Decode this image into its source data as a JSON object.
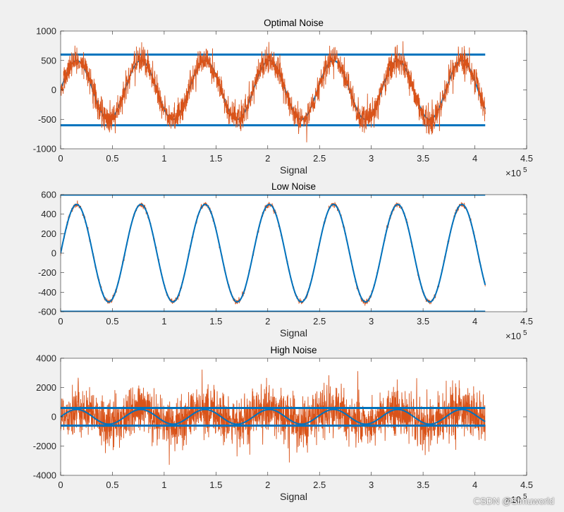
{
  "chart_data": [
    {
      "type": "line",
      "title": "Optimal Noise",
      "xlabel": "Signal",
      "ylabel": "",
      "x_exponent_label": "×10",
      "x_exponent": "5",
      "xlim": [
        0,
        4.5
      ],
      "ylim": [
        -1000,
        1000
      ],
      "xticks": [
        0,
        0.5,
        1,
        1.5,
        2,
        2.5,
        3,
        3.5,
        4,
        4.5
      ],
      "yticks": [
        -1000,
        -500,
        0,
        500,
        1000
      ],
      "xtick_labels": [
        "0",
        "0.5",
        "1",
        "1.5",
        "2",
        "2.5",
        "3",
        "3.5",
        "4",
        "4.5"
      ],
      "ytick_labels": [
        "-1000",
        "-500",
        "0",
        "500",
        "1000"
      ],
      "series": [
        {
          "name": "threshold-upper",
          "kind": "hline",
          "value": 600,
          "x_range": [
            0,
            4.1
          ],
          "color": "#0072BD"
        },
        {
          "name": "threshold-lower",
          "kind": "hline",
          "value": -600,
          "x_range": [
            0,
            4.1
          ],
          "color": "#0072BD"
        },
        {
          "name": "signal",
          "kind": "sine",
          "amplitude": 500,
          "period": 0.62,
          "x_range": [
            0,
            4.1
          ],
          "color": "#0072BD"
        },
        {
          "name": "noisy-signal",
          "kind": "noisy",
          "amplitude": 500,
          "period": 0.62,
          "noise_std": 120,
          "x_range": [
            0,
            4.1
          ],
          "color": "#D95319"
        }
      ]
    },
    {
      "type": "line",
      "title": "Low Noise",
      "xlabel": "Signal",
      "ylabel": "",
      "x_exponent_label": "×10",
      "x_exponent": "5",
      "xlim": [
        0,
        4.5
      ],
      "ylim": [
        -600,
        600
      ],
      "xticks": [
        0,
        0.5,
        1,
        1.5,
        2,
        2.5,
        3,
        3.5,
        4,
        4.5
      ],
      "yticks": [
        -600,
        -400,
        -200,
        0,
        200,
        400,
        600
      ],
      "xtick_labels": [
        "0",
        "0.5",
        "1",
        "1.5",
        "2",
        "2.5",
        "3",
        "3.5",
        "4",
        "4.5"
      ],
      "ytick_labels": [
        "-600",
        "-400",
        "-200",
        "0",
        "200",
        "400",
        "600"
      ],
      "series": [
        {
          "name": "threshold-upper",
          "kind": "hline",
          "value": 600,
          "x_range": [
            0,
            4.1
          ],
          "color": "#0072BD"
        },
        {
          "name": "threshold-lower",
          "kind": "hline",
          "value": -600,
          "x_range": [
            0,
            4.1
          ],
          "color": "#0072BD"
        },
        {
          "name": "noisy-signal",
          "kind": "noisy",
          "amplitude": 500,
          "period": 0.62,
          "noise_std": 14,
          "x_range": [
            0,
            4.1
          ],
          "color": "#D95319"
        },
        {
          "name": "signal",
          "kind": "sine",
          "amplitude": 500,
          "period": 0.62,
          "x_range": [
            0,
            4.1
          ],
          "color": "#0072BD"
        }
      ]
    },
    {
      "type": "line",
      "title": "High Noise",
      "xlabel": "Signal",
      "ylabel": "",
      "x_exponent_label": "×10",
      "x_exponent": "5",
      "xlim": [
        0,
        4.5
      ],
      "ylim": [
        -4000,
        4000
      ],
      "xticks": [
        0,
        0.5,
        1,
        1.5,
        2,
        2.5,
        3,
        3.5,
        4,
        4.5
      ],
      "yticks": [
        -4000,
        -2000,
        0,
        2000,
        4000
      ],
      "xtick_labels": [
        "0",
        "0.5",
        "1",
        "1.5",
        "2",
        "2.5",
        "3",
        "3.5",
        "4",
        "4.5"
      ],
      "ytick_labels": [
        "-4000",
        "-2000",
        "0",
        "2000",
        "4000"
      ],
      "series": [
        {
          "name": "noisy-signal",
          "kind": "noisy",
          "amplitude": 500,
          "period": 0.62,
          "noise_std": 850,
          "x_range": [
            0,
            4.1
          ],
          "color": "#D95319"
        },
        {
          "name": "threshold-upper",
          "kind": "hline",
          "value": 600,
          "x_range": [
            0,
            4.1
          ],
          "color": "#0072BD"
        },
        {
          "name": "threshold-lower",
          "kind": "hline",
          "value": -600,
          "x_range": [
            0,
            4.1
          ],
          "color": "#0072BD"
        },
        {
          "name": "signal",
          "kind": "sine",
          "amplitude": 500,
          "period": 0.62,
          "x_range": [
            0,
            4.1
          ],
          "color": "#0072BD"
        }
      ]
    }
  ],
  "watermark": "CSDN @Simuworld"
}
